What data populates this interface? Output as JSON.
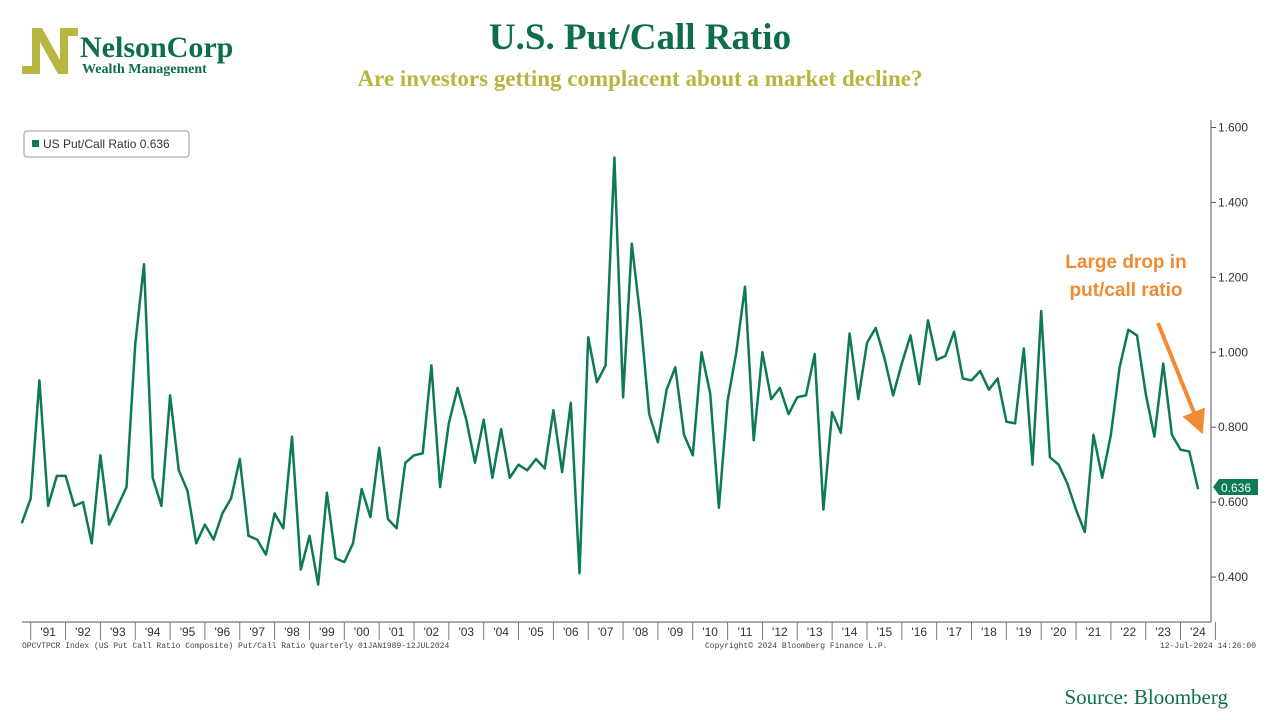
{
  "logo": {
    "name": "NelsonCorp",
    "tagline": "Wealth Management"
  },
  "header": {
    "title": "U.S. Put/Call Ratio",
    "subtitle": "Are investors getting complacent about a market decline?"
  },
  "colors": {
    "series": "#0e7a55",
    "title": "#0e6e4c",
    "subtitle": "#b9b541",
    "annotation": "#f08a33"
  },
  "legend_text": "US Put/Call Ratio 0.636",
  "annotation": {
    "line1": "Large drop in",
    "line2": "put/call ratio"
  },
  "last_value_label": "0.636",
  "footer": {
    "left": "OPCVTPCR Index (US Put Call Ratio Composite) Put/Call Ratio  Quarterly 01JAN1989-12JUL2024",
    "center": "Copyright© 2024 Bloomberg Finance L.P.",
    "right": "12-Jul-2024 14:26:00"
  },
  "source": "Source: Bloomberg",
  "chart_data": {
    "type": "line",
    "title": "U.S. Put/Call Ratio",
    "frequency": "Quarterly",
    "x_start": 1990.75,
    "x_step": 0.25,
    "ylim": [
      0.28,
      1.62
    ],
    "y_ticks": [
      0.4,
      0.6,
      0.8,
      1.0,
      1.2,
      1.4,
      1.6
    ],
    "y_tick_labels": [
      "0.400",
      "0.600",
      "0.800",
      "1.000",
      "1.200",
      "1.400",
      "1.600"
    ],
    "x_tick_labels": [
      "'91",
      "'92",
      "'93",
      "'94",
      "'95",
      "'96",
      "'97",
      "'98",
      "'99",
      "'00",
      "'01",
      "'02",
      "'03",
      "'04",
      "'05",
      "'06",
      "'07",
      "'08",
      "'09",
      "'10",
      "'11",
      "'12",
      "'13",
      "'14",
      "'15",
      "'16",
      "'17",
      "'18",
      "'19",
      "'20",
      "'21",
      "'22",
      "'23",
      "'24"
    ],
    "x_tick_years": [
      1991,
      1992,
      1993,
      1994,
      1995,
      1996,
      1997,
      1998,
      1999,
      2000,
      2001,
      2002,
      2003,
      2004,
      2005,
      2006,
      2007,
      2008,
      2009,
      2010,
      2011,
      2012,
      2013,
      2014,
      2015,
      2016,
      2017,
      2018,
      2019,
      2020,
      2021,
      2022,
      2023,
      2024
    ],
    "series": [
      {
        "name": "US Put/Call Ratio",
        "last_value": 0.636,
        "values": [
          0.545,
          0.61,
          0.925,
          0.59,
          0.67,
          0.67,
          0.59,
          0.6,
          0.49,
          0.725,
          0.54,
          0.59,
          0.64,
          1.02,
          1.235,
          0.665,
          0.59,
          0.885,
          0.685,
          0.63,
          0.49,
          0.54,
          0.5,
          0.57,
          0.61,
          0.715,
          0.51,
          0.5,
          0.46,
          0.57,
          0.53,
          0.775,
          0.42,
          0.51,
          0.38,
          0.625,
          0.45,
          0.44,
          0.49,
          0.635,
          0.56,
          0.745,
          0.555,
          0.53,
          0.705,
          0.725,
          0.73,
          0.965,
          0.64,
          0.81,
          0.905,
          0.82,
          0.705,
          0.82,
          0.665,
          0.795,
          0.665,
          0.7,
          0.685,
          0.715,
          0.69,
          0.845,
          0.68,
          0.865,
          0.41,
          1.04,
          0.92,
          0.965,
          1.52,
          0.88,
          1.29,
          1.09,
          0.835,
          0.76,
          0.9,
          0.96,
          0.78,
          0.725,
          1.0,
          0.89,
          0.585,
          0.87,
          1.0,
          1.175,
          0.765,
          1.0,
          0.875,
          0.905,
          0.835,
          0.88,
          0.885,
          0.995,
          0.58,
          0.84,
          0.785,
          1.05,
          0.875,
          1.025,
          1.065,
          0.985,
          0.885,
          0.97,
          1.045,
          0.915,
          1.085,
          0.98,
          0.99,
          1.055,
          0.93,
          0.925,
          0.95,
          0.9,
          0.93,
          0.815,
          0.81,
          1.01,
          0.7,
          1.11,
          0.72,
          0.7,
          0.65,
          0.58,
          0.52,
          0.78,
          0.665,
          0.78,
          0.96,
          1.06,
          1.045,
          0.89,
          0.775,
          0.97,
          0.78,
          0.74,
          0.735,
          0.636
        ]
      }
    ]
  }
}
